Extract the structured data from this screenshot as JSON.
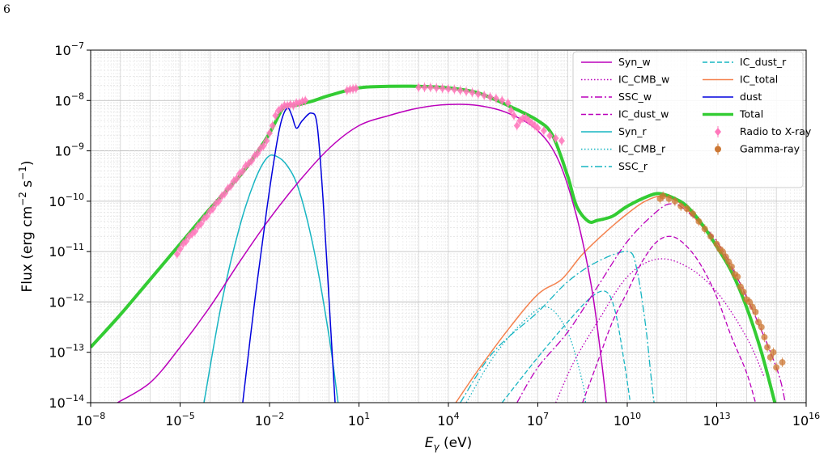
{
  "page_number": "6",
  "chart_data": {
    "type": "line",
    "x_scale": "log",
    "y_scale": "log",
    "xlim": [
      1e-08,
      1e+16
    ],
    "ylim": [
      1e-14,
      1e-07
    ],
    "x_tick_exponents": [
      -8,
      -5,
      -2,
      1,
      4,
      7,
      10,
      13,
      16
    ],
    "y_tick_exponents": [
      -14,
      -13,
      -12,
      -11,
      -10,
      -9,
      -8,
      -7
    ],
    "x_tick_base": "10",
    "y_tick_base": "10",
    "xlabel_main": "E",
    "xlabel_sub": "γ",
    "xlabel_unit": " (eV)",
    "ylabel_main": "Flux (erg cm",
    "ylabel_exp1": "−2",
    "ylabel_mid": " s",
    "ylabel_exp2": "−1",
    "ylabel_end": ")",
    "grid": true,
    "legend_position": "top-right",
    "series": [
      {
        "name": "Syn_w",
        "color": "#bb00bb",
        "dash": "solid",
        "width": 1.5,
        "points": [
          [
            -7.1,
            -14
          ],
          [
            -6,
            -13.6
          ],
          [
            -5,
            -12.9
          ],
          [
            -4,
            -12.1
          ],
          [
            -3,
            -11.2
          ],
          [
            -2,
            -10.35
          ],
          [
            -1,
            -9.6
          ],
          [
            0,
            -8.95
          ],
          [
            1,
            -8.5
          ],
          [
            2,
            -8.3
          ],
          [
            3,
            -8.15
          ],
          [
            4,
            -8.08
          ],
          [
            5,
            -8.1
          ],
          [
            6,
            -8.25
          ],
          [
            7,
            -8.6
          ],
          [
            7.7,
            -9.2
          ],
          [
            8.3,
            -10.3
          ],
          [
            8.8,
            -11.7
          ],
          [
            9.1,
            -13
          ],
          [
            9.3,
            -14
          ]
        ]
      },
      {
        "name": "IC_CMB_w",
        "color": "#bb00bb",
        "dash": "1.5,2.5",
        "width": 1.3,
        "points": [
          [
            7.6,
            -14
          ],
          [
            8.2,
            -13.2
          ],
          [
            9,
            -12.4
          ],
          [
            10,
            -11.5
          ],
          [
            11,
            -11.15
          ],
          [
            12,
            -11.3
          ],
          [
            13,
            -11.8
          ],
          [
            14,
            -12.7
          ],
          [
            14.6,
            -13.5
          ]
        ]
      },
      {
        "name": "SSC_w",
        "color": "#bb00bb",
        "dash": "9,3,2,3",
        "width": 1.3,
        "points": [
          [
            6.3,
            -14
          ],
          [
            7,
            -13.3
          ],
          [
            8,
            -12.6
          ],
          [
            9,
            -11.7
          ],
          [
            10,
            -10.8
          ],
          [
            11,
            -10.2
          ],
          [
            11.5,
            -10.05
          ],
          [
            12,
            -10.2
          ],
          [
            13,
            -10.8
          ],
          [
            14,
            -11.9
          ],
          [
            15,
            -13.3
          ],
          [
            15.3,
            -14
          ]
        ]
      },
      {
        "name": "IC_dust_w",
        "color": "#bb00bb",
        "dash": "6,3",
        "width": 1.3,
        "points": [
          [
            8.5,
            -14
          ],
          [
            9,
            -13.2
          ],
          [
            9.5,
            -12.4
          ],
          [
            10,
            -11.8
          ],
          [
            10.5,
            -11.2
          ],
          [
            11,
            -10.8
          ],
          [
            11.5,
            -10.7
          ],
          [
            12,
            -10.9
          ],
          [
            12.5,
            -11.3
          ],
          [
            13,
            -11.9
          ],
          [
            13.5,
            -12.7
          ],
          [
            14,
            -13.4
          ],
          [
            14.3,
            -14
          ]
        ]
      },
      {
        "name": "Syn_r",
        "color": "#17b5c2",
        "dash": "solid",
        "width": 1.5,
        "points": [
          [
            -4.2,
            -14
          ],
          [
            -3.6,
            -12
          ],
          [
            -3,
            -10.5
          ],
          [
            -2.5,
            -9.6
          ],
          [
            -2.1,
            -9.15
          ],
          [
            -1.8,
            -9.1
          ],
          [
            -1.4,
            -9.3
          ],
          [
            -1,
            -9.8
          ],
          [
            -0.5,
            -11
          ],
          [
            0,
            -12.7
          ],
          [
            0.3,
            -14
          ]
        ]
      },
      {
        "name": "IC_CMB_r",
        "color": "#17b5c2",
        "dash": "1.5,2.5",
        "width": 1.3,
        "points": [
          [
            4.6,
            -14
          ],
          [
            5.5,
            -13.1
          ],
          [
            6.5,
            -12.4
          ],
          [
            7.3,
            -12.1
          ],
          [
            8,
            -12.6
          ],
          [
            8.5,
            -13.6
          ],
          [
            8.6,
            -14
          ]
        ]
      },
      {
        "name": "SSC_r",
        "color": "#17b5c2",
        "dash": "9,3,2,3",
        "width": 1.3,
        "points": [
          [
            4.4,
            -14
          ],
          [
            5.5,
            -13
          ],
          [
            7,
            -12.2
          ],
          [
            8,
            -11.6
          ],
          [
            9,
            -11.2
          ],
          [
            10,
            -11
          ],
          [
            10.3,
            -11.3
          ],
          [
            10.6,
            -12.4
          ],
          [
            10.8,
            -13.5
          ],
          [
            10.9,
            -14
          ]
        ]
      },
      {
        "name": "IC_dust_r",
        "color": "#17b5c2",
        "dash": "6,3",
        "width": 1.3,
        "points": [
          [
            5.8,
            -14
          ],
          [
            7,
            -13.1
          ],
          [
            8,
            -12.4
          ],
          [
            8.8,
            -11.9
          ],
          [
            9.3,
            -11.8
          ],
          [
            9.6,
            -12.2
          ],
          [
            9.9,
            -13.2
          ],
          [
            10.1,
            -14
          ]
        ]
      },
      {
        "name": "dust",
        "color": "#0000dd",
        "dash": "solid",
        "width": 1.5,
        "points": [
          [
            -2.9,
            -14
          ],
          [
            -2.5,
            -12
          ],
          [
            -2.1,
            -10.2
          ],
          [
            -1.8,
            -9
          ],
          [
            -1.6,
            -8.4
          ],
          [
            -1.4,
            -8.15
          ],
          [
            -1.25,
            -8.3
          ],
          [
            -1.1,
            -8.55
          ],
          [
            -0.9,
            -8.4
          ],
          [
            -0.6,
            -8.25
          ],
          [
            -0.4,
            -8.5
          ],
          [
            -0.2,
            -10
          ],
          [
            0,
            -12
          ],
          [
            0.2,
            -14
          ]
        ]
      },
      {
        "name": "IC_total",
        "color": "#f4814d",
        "dash": "solid",
        "width": 1.5,
        "points": [
          [
            4.25,
            -14
          ],
          [
            5,
            -13.35
          ],
          [
            6,
            -12.55
          ],
          [
            7,
            -11.85
          ],
          [
            7.8,
            -11.55
          ],
          [
            8.5,
            -11.05
          ],
          [
            9.3,
            -10.6
          ],
          [
            10,
            -10.25
          ],
          [
            10.6,
            -10
          ],
          [
            11.2,
            -9.9
          ],
          [
            11.8,
            -10.05
          ],
          [
            12.5,
            -10.5
          ],
          [
            13,
            -10.9
          ],
          [
            13.5,
            -11.4
          ],
          [
            14,
            -12.1
          ],
          [
            14.5,
            -13
          ],
          [
            14.95,
            -14
          ]
        ]
      },
      {
        "name": "Total",
        "color": "#33cc33",
        "dash": "solid",
        "width": 4,
        "points": [
          [
            -8,
            -12.9
          ],
          [
            -7,
            -12.25
          ],
          [
            -6,
            -11.55
          ],
          [
            -5,
            -10.85
          ],
          [
            -4,
            -10.15
          ],
          [
            -3,
            -9.5
          ],
          [
            -2.5,
            -9.1
          ],
          [
            -2,
            -8.65
          ],
          [
            -1.6,
            -8.2
          ],
          [
            -1.4,
            -8.1
          ],
          [
            -1.2,
            -8.1
          ],
          [
            -1,
            -8.08
          ],
          [
            -0.5,
            -8
          ],
          [
            0,
            -7.9
          ],
          [
            1,
            -7.75
          ],
          [
            2,
            -7.72
          ],
          [
            3,
            -7.72
          ],
          [
            4,
            -7.75
          ],
          [
            5,
            -7.85
          ],
          [
            6,
            -8.1
          ],
          [
            7,
            -8.4
          ],
          [
            7.5,
            -8.7
          ],
          [
            8,
            -9.5
          ],
          [
            8.3,
            -10.1
          ],
          [
            8.7,
            -10.4
          ],
          [
            9,
            -10.38
          ],
          [
            9.5,
            -10.3
          ],
          [
            10,
            -10.1
          ],
          [
            10.7,
            -9.9
          ],
          [
            11.1,
            -9.85
          ],
          [
            11.6,
            -9.95
          ],
          [
            12,
            -10.1
          ],
          [
            12.5,
            -10.45
          ],
          [
            13,
            -10.9
          ],
          [
            13.5,
            -11.4
          ],
          [
            14,
            -12.1
          ],
          [
            14.5,
            -13
          ],
          [
            14.95,
            -14
          ]
        ]
      }
    ],
    "markers": [
      {
        "name": "Radio to X-ray",
        "color": "#ff77bb",
        "shape": "diamond",
        "points": [
          [
            -5.1,
            -11.05
          ],
          [
            -5,
            -10.95
          ],
          [
            -4.9,
            -10.85
          ],
          [
            -4.8,
            -10.8
          ],
          [
            -4.7,
            -10.7
          ],
          [
            -4.6,
            -10.65
          ],
          [
            -4.5,
            -10.6
          ],
          [
            -4.4,
            -10.5
          ],
          [
            -4.3,
            -10.45
          ],
          [
            -4.2,
            -10.35
          ],
          [
            -4.1,
            -10.3
          ],
          [
            -4,
            -10.2
          ],
          [
            -3.9,
            -10.15
          ],
          [
            -3.8,
            -10.05
          ],
          [
            -3.7,
            -10
          ],
          [
            -3.6,
            -9.9
          ],
          [
            -3.5,
            -9.85
          ],
          [
            -3.4,
            -9.75
          ],
          [
            -3.3,
            -9.7
          ],
          [
            -3.2,
            -9.6
          ],
          [
            -3.1,
            -9.55
          ],
          [
            -3,
            -9.45
          ],
          [
            -2.9,
            -9.4
          ],
          [
            -2.8,
            -9.3
          ],
          [
            -2.7,
            -9.25
          ],
          [
            -2.6,
            -9.2
          ],
          [
            -2.5,
            -9.1
          ],
          [
            -2.4,
            -9.05
          ],
          [
            -2.3,
            -8.95
          ],
          [
            -2.2,
            -8.9
          ],
          [
            -2.1,
            -8.8
          ],
          [
            -2,
            -8.65
          ],
          [
            -1.9,
            -8.5
          ],
          [
            -1.8,
            -8.3
          ],
          [
            -1.7,
            -8.2
          ],
          [
            -1.6,
            -8.15
          ],
          [
            -1.5,
            -8.1
          ],
          [
            -1.4,
            -8.1
          ],
          [
            -1.3,
            -8.08
          ],
          [
            -1.2,
            -8.1
          ],
          [
            -1.1,
            -8.05
          ],
          [
            -1,
            -8.05
          ],
          [
            -0.9,
            -8.02
          ],
          [
            -0.8,
            -8
          ],
          [
            0.6,
            -7.8
          ],
          [
            0.7,
            -7.78
          ],
          [
            0.8,
            -7.77
          ],
          [
            0.9,
            -7.76
          ],
          [
            3,
            -7.74
          ],
          [
            3.2,
            -7.74
          ],
          [
            3.4,
            -7.74
          ],
          [
            3.6,
            -7.75
          ],
          [
            3.8,
            -7.76
          ],
          [
            4,
            -7.77
          ],
          [
            4.2,
            -7.78
          ],
          [
            4.4,
            -7.8
          ],
          [
            4.6,
            -7.82
          ],
          [
            4.8,
            -7.84
          ],
          [
            5,
            -7.87
          ],
          [
            5.2,
            -7.9
          ],
          [
            5.4,
            -7.93
          ],
          [
            5.6,
            -7.96
          ],
          [
            5.8,
            -8
          ],
          [
            6,
            -8.05
          ],
          [
            6.1,
            -8.2
          ],
          [
            6.2,
            -8.3
          ],
          [
            6.3,
            -8.5
          ],
          [
            6.4,
            -8.4
          ],
          [
            6.5,
            -8.35
          ],
          [
            6.6,
            -8.35
          ],
          [
            6.7,
            -8.4
          ],
          [
            6.8,
            -8.45
          ],
          [
            6.9,
            -8.5
          ],
          [
            7,
            -8.55
          ],
          [
            7.2,
            -8.6
          ],
          [
            7.4,
            -8.7
          ],
          [
            7.6,
            -8.75
          ],
          [
            7.8,
            -8.8
          ]
        ]
      },
      {
        "name": "Gamma-ray",
        "color": "#cc7733",
        "shape": "circle",
        "points": [
          [
            11.1,
            -9.95
          ],
          [
            11.2,
            -9.9
          ],
          [
            11.4,
            -9.95
          ],
          [
            11.6,
            -10
          ],
          [
            11.8,
            -10.1
          ],
          [
            12,
            -10.15
          ],
          [
            12.2,
            -10.25
          ],
          [
            12.4,
            -10.4
          ],
          [
            12.6,
            -10.55
          ],
          [
            12.8,
            -10.7
          ],
          [
            13,
            -10.85
          ],
          [
            13.1,
            -10.95
          ],
          [
            13.2,
            -11
          ],
          [
            13.3,
            -11.1
          ],
          [
            13.4,
            -11.2
          ],
          [
            13.5,
            -11.3
          ],
          [
            13.6,
            -11.45
          ],
          [
            13.7,
            -11.5
          ],
          [
            13.8,
            -11.7
          ],
          [
            13.9,
            -11.8
          ],
          [
            14,
            -11.95
          ],
          [
            14.1,
            -12
          ],
          [
            14.2,
            -12.1
          ],
          [
            14.3,
            -12.2
          ],
          [
            14.4,
            -12.4
          ],
          [
            14.5,
            -12.5
          ],
          [
            14.6,
            -12.7
          ],
          [
            14.7,
            -12.9
          ],
          [
            14.8,
            -13.1
          ],
          [
            14.9,
            -13
          ],
          [
            15,
            -13.3
          ],
          [
            15.2,
            -13.2
          ]
        ]
      }
    ]
  }
}
